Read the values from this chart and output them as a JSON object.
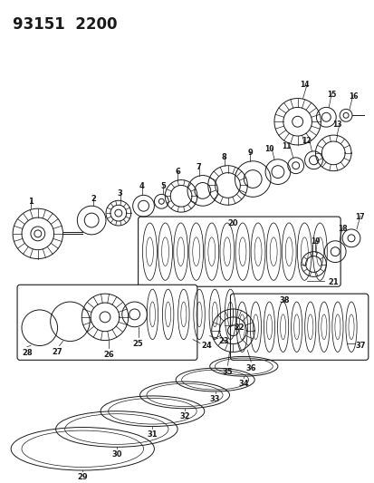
{
  "title": "93151  2200",
  "bg_color": "#ffffff",
  "line_color": "#1a1a1a",
  "fig_width": 4.14,
  "fig_height": 5.33,
  "dpi": 100
}
